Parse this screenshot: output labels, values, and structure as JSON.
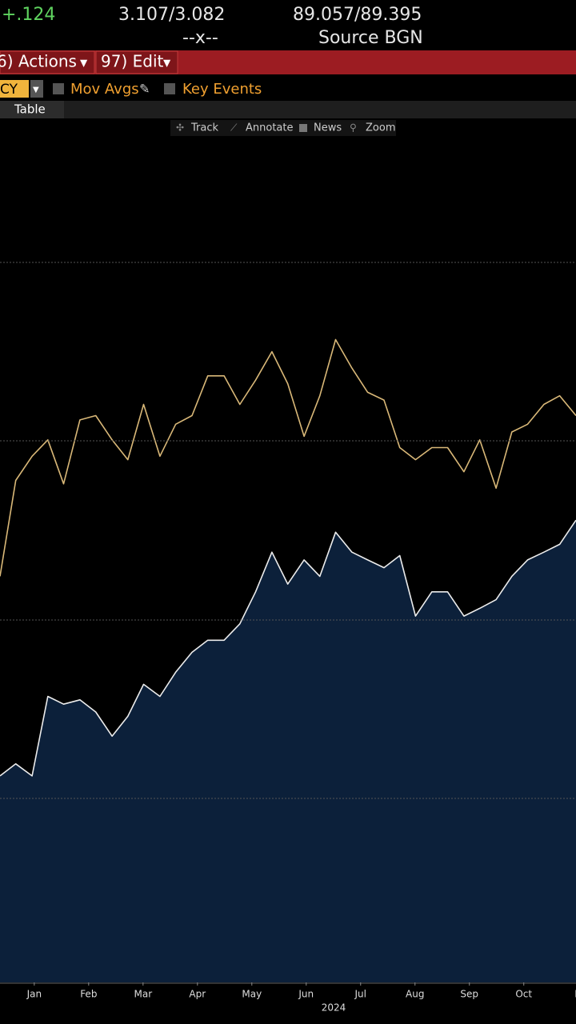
{
  "header": {
    "change": "+.124",
    "bid_ask_1": "3.107/3.082",
    "bid_ask_2": "89.057/89.395",
    "separator": "--x--",
    "source": "Source BGN"
  },
  "menu": {
    "actions": "6) Actions",
    "edit": "97) Edit"
  },
  "options": {
    "currency": "CY",
    "mov_avgs": "Mov Avgs",
    "key_events": "Key Events"
  },
  "tabs": {
    "table": "Table"
  },
  "toolbar": {
    "track": "Track",
    "annotate": "Annotate",
    "news": "News",
    "zoom": "Zoom"
  },
  "chart_data": {
    "type": "line",
    "x_label": "2024",
    "x": [
      -0.63,
      -0.34,
      -0.04,
      0.25,
      0.54,
      0.84,
      1.13,
      1.43,
      1.72,
      2.01,
      2.31,
      2.6,
      2.9,
      3.19,
      3.49,
      3.78,
      4.07,
      4.37,
      4.66,
      4.96,
      5.25,
      5.54,
      5.84,
      6.13,
      6.43,
      6.72,
      7.01,
      7.31,
      7.6,
      7.9,
      8.19,
      8.49,
      8.78,
      9.07,
      9.37,
      9.66,
      9.96
    ],
    "series": [
      {
        "color": "#d9b878",
        "fill": false,
        "values": [
          47.0,
          58.1,
          60.9,
          62.8,
          57.7,
          65.1,
          65.6,
          62.8,
          60.5,
          66.9,
          60.9,
          64.6,
          65.6,
          70.2,
          70.2,
          66.9,
          69.7,
          73.0,
          69.3,
          63.2,
          67.9,
          74.4,
          71.1,
          68.3,
          67.4,
          61.9,
          60.5,
          61.9,
          61.9,
          59.1,
          62.8,
          57.2,
          63.7,
          64.6,
          66.9,
          67.9,
          65.6
        ]
      },
      {
        "color": "#ececec",
        "fill": true,
        "fill_color": "#0c203a",
        "values": [
          23.9,
          25.3,
          23.9,
          33.1,
          32.2,
          32.7,
          31.3,
          28.5,
          30.8,
          34.5,
          33.1,
          35.9,
          38.2,
          39.6,
          39.6,
          41.5,
          45.2,
          49.8,
          46.1,
          48.9,
          47.0,
          52.1,
          49.8,
          48.9,
          48.0,
          49.4,
          42.4,
          45.2,
          45.2,
          42.4,
          43.3,
          44.3,
          47.0,
          48.9,
          49.8,
          50.7,
          53.5
        ]
      }
    ],
    "xlim": [
      -0.63,
      9.96
    ],
    "xticks": [
      {
        "value": 0,
        "label": "Jan"
      },
      {
        "value": 1,
        "label": "Feb"
      },
      {
        "value": 2,
        "label": "Mar"
      },
      {
        "value": 3,
        "label": "Apr"
      },
      {
        "value": 4,
        "label": "May"
      },
      {
        "value": 5,
        "label": "Jun"
      },
      {
        "value": 6,
        "label": "Jul"
      },
      {
        "value": 7,
        "label": "Aug"
      },
      {
        "value": 8,
        "label": "Sep"
      },
      {
        "value": 9,
        "label": "Oct"
      },
      {
        "value": 10,
        "label": "N"
      }
    ],
    "ylim": [
      0,
      100
    ]
  }
}
